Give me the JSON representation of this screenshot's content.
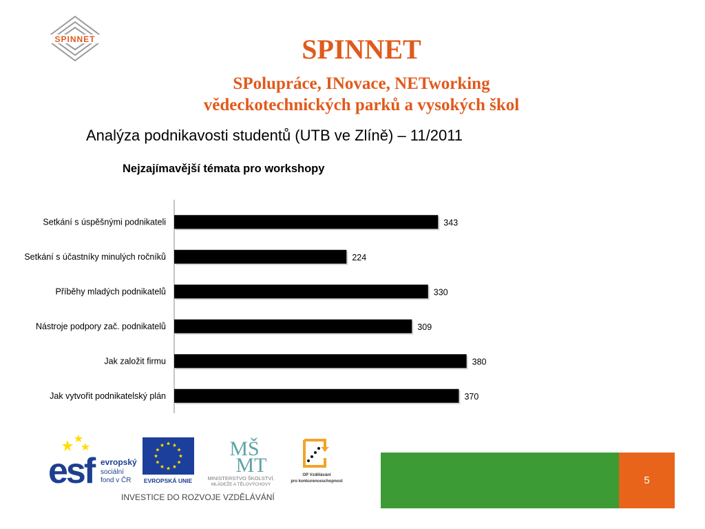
{
  "slide": {
    "logo_text": "SPINNET",
    "title": "SPINNET",
    "subtitle_line1": "SPolupráce, INovace, NETworking",
    "subtitle_line2": "vědeckotechnických parků a vysokých škol",
    "analysis_heading": "Analýza podnikavosti studentů (UTB ve Zlíně) – 11/2011",
    "page_number": "5"
  },
  "footer": {
    "esf_line1": "evropský",
    "esf_line2": "sociální",
    "esf_line3": "fond v ČR",
    "eu_label": "EVROPSKÁ UNIE",
    "msmt_line1": "MINISTERSTVO ŠKOLSTVÍ,",
    "msmt_line2": "MLÁDEŽE A TĚLOVÝCHOVY",
    "op_line1": "OP Vzdělávání",
    "op_line2": "pro konkurenceschopnost",
    "investice": "INVESTICE DO ROZVOJE VZDĚLÁVÁNÍ"
  },
  "colors": {
    "title_orange": "#e05a1c",
    "bar": "#000000",
    "band_green": "#3d9b35",
    "page_orange": "#e8641b",
    "esf_blue": "#1d3f8f",
    "eu_blue": "#1b3f9a",
    "eu_star": "#ffdd00",
    "msmt_teal": "#5fa3a6"
  },
  "chart_data": {
    "type": "bar",
    "orientation": "horizontal",
    "title": "Nejzajímavější témata pro workshopy",
    "categories": [
      "Setkání s úspěšnými podnikateli",
      "Setkání s účastníky minulých ročníků",
      "Příběhy mladých podnikatelů",
      "Nástroje podpory zač. podnikatelů",
      "Jak založit firmu",
      "Jak vytvořit podnikatelský plán"
    ],
    "values": [
      343,
      224,
      330,
      309,
      380,
      370
    ],
    "data_labels": true,
    "grid": false,
    "legend": "none"
  }
}
